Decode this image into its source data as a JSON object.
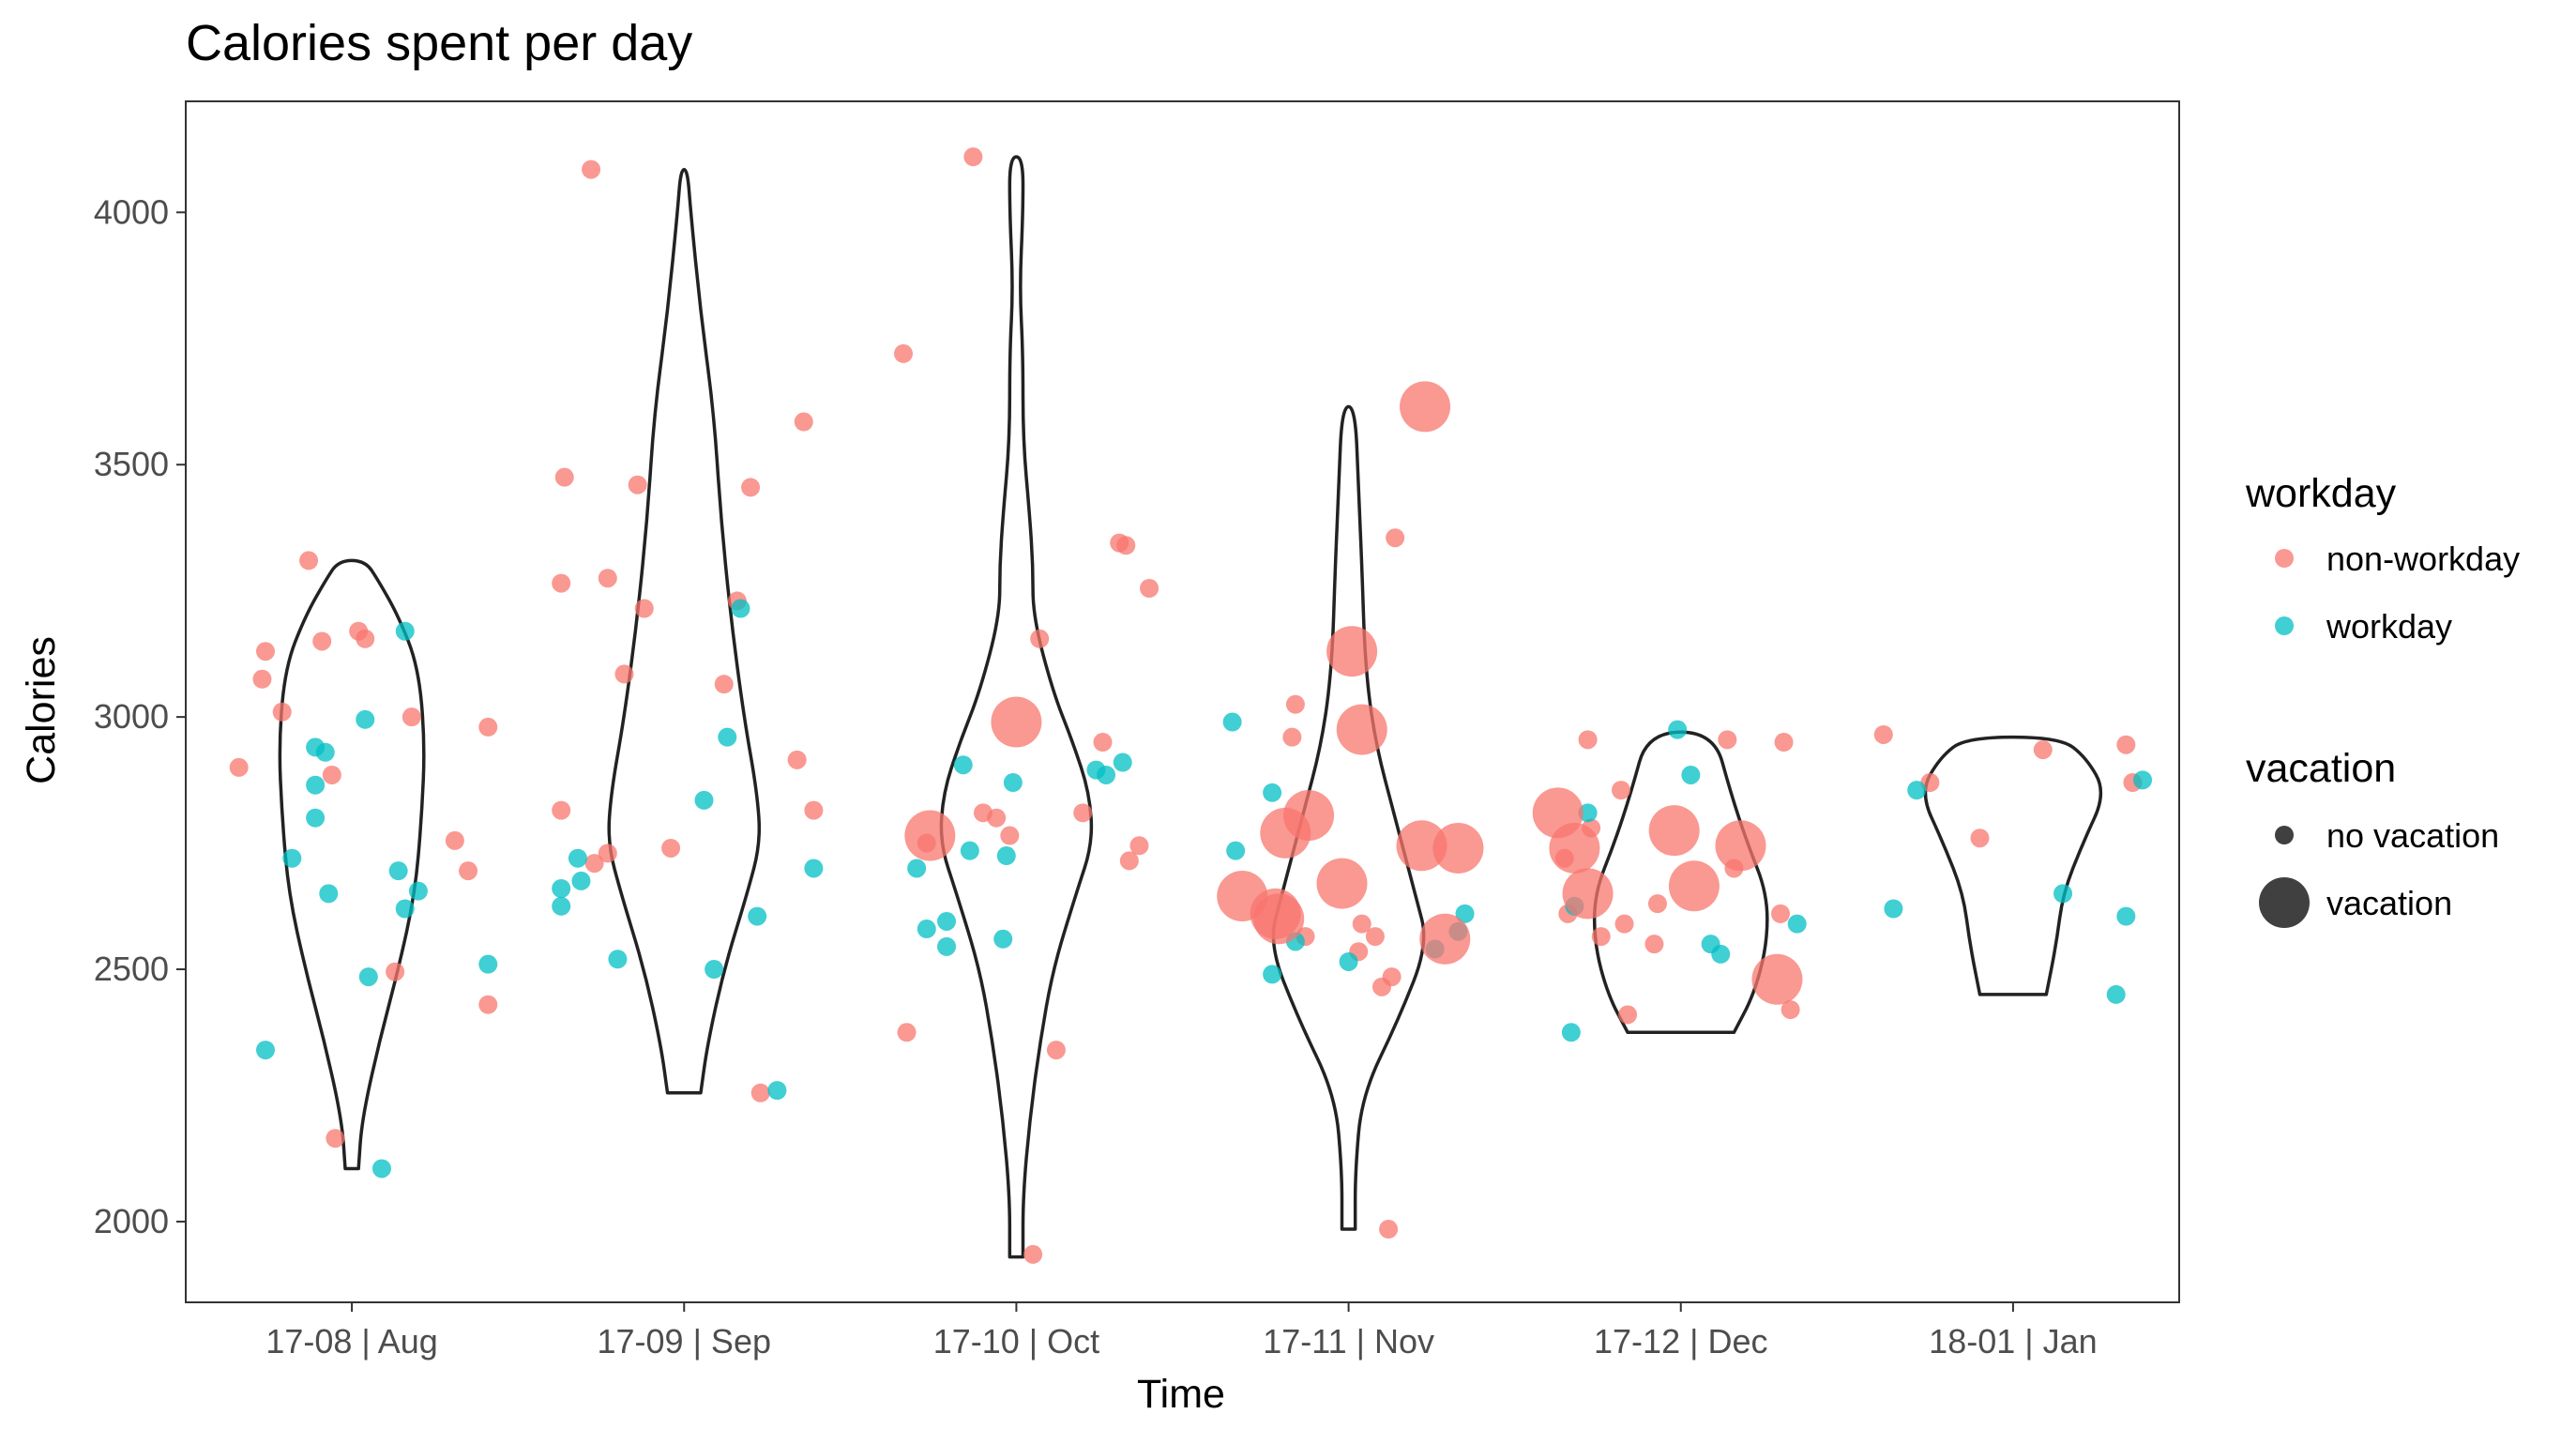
{
  "chart_data": {
    "type": "violin",
    "title": "Calories spent per day",
    "xlabel": "Time",
    "ylabel": "Calories",
    "ylim": [
      1840,
      4220
    ],
    "yticks": [
      2000,
      2500,
      3000,
      3500,
      4000
    ],
    "grid": false,
    "legend_position": "right",
    "categories": [
      "17-08 | Aug",
      "17-09 | Sep",
      "17-10 | Oct",
      "17-11 | Nov",
      "17-12 | Dec",
      "18-01 | Jan"
    ],
    "violins": [
      {
        "category": "17-08 | Aug",
        "profile": [
          [
            2105,
            0.02
          ],
          [
            2200,
            0.03
          ],
          [
            2350,
            0.08
          ],
          [
            2500,
            0.14
          ],
          [
            2650,
            0.19
          ],
          [
            2800,
            0.21
          ],
          [
            2950,
            0.22
          ],
          [
            3100,
            0.2
          ],
          [
            3200,
            0.14
          ],
          [
            3270,
            0.08
          ],
          [
            3310,
            0.04
          ]
        ]
      },
      {
        "category": "17-09 | Sep",
        "profile": [
          [
            2255,
            0.05
          ],
          [
            2350,
            0.07
          ],
          [
            2500,
            0.12
          ],
          [
            2650,
            0.19
          ],
          [
            2750,
            0.23
          ],
          [
            2850,
            0.22
          ],
          [
            3000,
            0.18
          ],
          [
            3200,
            0.14
          ],
          [
            3400,
            0.11
          ],
          [
            3600,
            0.09
          ],
          [
            3800,
            0.05
          ],
          [
            4000,
            0.02
          ],
          [
            4085,
            0.01
          ]
        ]
      },
      {
        "category": "17-10 | Oct",
        "profile": [
          [
            1930,
            0.02
          ],
          [
            2050,
            0.02
          ],
          [
            2200,
            0.04
          ],
          [
            2350,
            0.07
          ],
          [
            2500,
            0.11
          ],
          [
            2650,
            0.18
          ],
          [
            2750,
            0.23
          ],
          [
            2850,
            0.22
          ],
          [
            2950,
            0.17
          ],
          [
            3050,
            0.11
          ],
          [
            3200,
            0.05
          ],
          [
            3300,
            0.05
          ],
          [
            3400,
            0.04
          ],
          [
            3550,
            0.02
          ],
          [
            3720,
            0.02
          ],
          [
            3850,
            0.01
          ],
          [
            4000,
            0.02
          ],
          [
            4110,
            0.02
          ]
        ]
      },
      {
        "category": "17-11 | Nov",
        "profile": [
          [
            1985,
            0.02
          ],
          [
            2100,
            0.02
          ],
          [
            2250,
            0.04
          ],
          [
            2400,
            0.15
          ],
          [
            2550,
            0.24
          ],
          [
            2650,
            0.2
          ],
          [
            2800,
            0.14
          ],
          [
            2950,
            0.08
          ],
          [
            3100,
            0.05
          ],
          [
            3300,
            0.04
          ],
          [
            3450,
            0.03
          ],
          [
            3615,
            0.02
          ]
        ]
      },
      {
        "category": "17-12 | Dec",
        "profile": [
          [
            2375,
            0.16
          ],
          [
            2450,
            0.22
          ],
          [
            2550,
            0.26
          ],
          [
            2650,
            0.26
          ],
          [
            2750,
            0.2
          ],
          [
            2850,
            0.15
          ],
          [
            2970,
            0.1
          ]
        ]
      },
      {
        "category": "18-01 | Jan",
        "profile": [
          [
            2450,
            0.1
          ],
          [
            2550,
            0.13
          ],
          [
            2650,
            0.15
          ],
          [
            2750,
            0.21
          ],
          [
            2850,
            0.28
          ],
          [
            2920,
            0.22
          ],
          [
            2960,
            0.14
          ]
        ]
      }
    ],
    "series": [
      {
        "name": "non-workday",
        "color": "#F8766D",
        "points": [
          {
            "x": 0.66,
            "y": 2900
          },
          {
            "x": 0.74,
            "y": 3130
          },
          {
            "x": 0.73,
            "y": 3075
          },
          {
            "x": 0.79,
            "y": 3010
          },
          {
            "x": 0.87,
            "y": 3310
          },
          {
            "x": 0.91,
            "y": 3150
          },
          {
            "x": 0.94,
            "y": 2885
          },
          {
            "x": 0.95,
            "y": 2165
          },
          {
            "x": 1.02,
            "y": 3170
          },
          {
            "x": 1.04,
            "y": 3155
          },
          {
            "x": 1.13,
            "y": 2495
          },
          {
            "x": 1.18,
            "y": 3000
          },
          {
            "x": 1.31,
            "y": 2755
          },
          {
            "x": 1.35,
            "y": 2695
          },
          {
            "x": 1.41,
            "y": 2980
          },
          {
            "x": 1.41,
            "y": 2430
          },
          {
            "x": 1.63,
            "y": 2815
          },
          {
            "x": 1.63,
            "y": 3265
          },
          {
            "x": 1.64,
            "y": 3475
          },
          {
            "x": 1.72,
            "y": 4085
          },
          {
            "x": 1.77,
            "y": 3275
          },
          {
            "x": 1.77,
            "y": 2730
          },
          {
            "x": 1.73,
            "y": 2710
          },
          {
            "x": 1.82,
            "y": 3085
          },
          {
            "x": 1.86,
            "y": 3460
          },
          {
            "x": 1.88,
            "y": 3215
          },
          {
            "x": 1.96,
            "y": 2740
          },
          {
            "x": 2.12,
            "y": 3065
          },
          {
            "x": 2.16,
            "y": 3230
          },
          {
            "x": 2.2,
            "y": 3455
          },
          {
            "x": 2.23,
            "y": 2255
          },
          {
            "x": 2.34,
            "y": 2915
          },
          {
            "x": 2.36,
            "y": 3585
          },
          {
            "x": 2.39,
            "y": 2815
          },
          {
            "x": 2.66,
            "y": 3720
          },
          {
            "x": 2.67,
            "y": 2375
          },
          {
            "x": 2.73,
            "y": 2750
          },
          {
            "x": 2.87,
            "y": 4110
          },
          {
            "x": 2.9,
            "y": 2810
          },
          {
            "x": 2.94,
            "y": 2800
          },
          {
            "x": 2.98,
            "y": 2765
          },
          {
            "x": 3.05,
            "y": 1935
          },
          {
            "x": 3.07,
            "y": 3155
          },
          {
            "x": 3.12,
            "y": 2340
          },
          {
            "x": 3.2,
            "y": 2810
          },
          {
            "x": 3.26,
            "y": 2950
          },
          {
            "x": 3.31,
            "y": 3345
          },
          {
            "x": 3.33,
            "y": 3340
          },
          {
            "x": 3.34,
            "y": 2715
          },
          {
            "x": 3.37,
            "y": 2745
          },
          {
            "x": 3.4,
            "y": 3255
          },
          {
            "x": 3.83,
            "y": 2960
          },
          {
            "x": 3.84,
            "y": 3025
          },
          {
            "x": 3.87,
            "y": 2565
          },
          {
            "x": 4.03,
            "y": 2535
          },
          {
            "x": 4.04,
            "y": 2590
          },
          {
            "x": 4.08,
            "y": 2565
          },
          {
            "x": 4.1,
            "y": 2465
          },
          {
            "x": 4.12,
            "y": 1985
          },
          {
            "x": 4.13,
            "y": 2485
          },
          {
            "x": 4.14,
            "y": 3355
          },
          {
            "x": 4.65,
            "y": 2720
          },
          {
            "x": 4.66,
            "y": 2610
          },
          {
            "x": 4.72,
            "y": 2955
          },
          {
            "x": 4.73,
            "y": 2780
          },
          {
            "x": 4.76,
            "y": 2565
          },
          {
            "x": 4.82,
            "y": 2855
          },
          {
            "x": 4.83,
            "y": 2590
          },
          {
            "x": 4.84,
            "y": 2410
          },
          {
            "x": 4.92,
            "y": 2550
          },
          {
            "x": 4.93,
            "y": 2630
          },
          {
            "x": 5.14,
            "y": 2955
          },
          {
            "x": 5.16,
            "y": 2700
          },
          {
            "x": 5.3,
            "y": 2610
          },
          {
            "x": 5.31,
            "y": 2950
          },
          {
            "x": 5.33,
            "y": 2420
          },
          {
            "x": 5.61,
            "y": 2965
          },
          {
            "x": 5.75,
            "y": 2870
          },
          {
            "x": 5.9,
            "y": 2760
          },
          {
            "x": 6.09,
            "y": 2935
          },
          {
            "x": 6.34,
            "y": 2945
          },
          {
            "x": 6.36,
            "y": 2870
          }
        ]
      },
      {
        "name": "workday",
        "color": "#00BFC4",
        "points": [
          {
            "x": 0.74,
            "y": 2340
          },
          {
            "x": 0.82,
            "y": 2720
          },
          {
            "x": 0.89,
            "y": 2940
          },
          {
            "x": 0.89,
            "y": 2865
          },
          {
            "x": 0.89,
            "y": 2800
          },
          {
            "x": 0.92,
            "y": 2930
          },
          {
            "x": 0.93,
            "y": 2650
          },
          {
            "x": 1.04,
            "y": 2995
          },
          {
            "x": 1.05,
            "y": 2485
          },
          {
            "x": 1.09,
            "y": 2105
          },
          {
            "x": 1.14,
            "y": 2695
          },
          {
            "x": 1.16,
            "y": 3170
          },
          {
            "x": 1.16,
            "y": 2620
          },
          {
            "x": 1.2,
            "y": 2655
          },
          {
            "x": 1.41,
            "y": 2510
          },
          {
            "x": 1.63,
            "y": 2625
          },
          {
            "x": 1.63,
            "y": 2660
          },
          {
            "x": 1.68,
            "y": 2720
          },
          {
            "x": 1.69,
            "y": 2675
          },
          {
            "x": 1.8,
            "y": 2520
          },
          {
            "x": 2.06,
            "y": 2835
          },
          {
            "x": 2.09,
            "y": 2500
          },
          {
            "x": 2.13,
            "y": 2960
          },
          {
            "x": 2.17,
            "y": 3215
          },
          {
            "x": 2.22,
            "y": 2605
          },
          {
            "x": 2.28,
            "y": 2260
          },
          {
            "x": 2.39,
            "y": 2700
          },
          {
            "x": 2.7,
            "y": 2700
          },
          {
            "x": 2.73,
            "y": 2580
          },
          {
            "x": 2.79,
            "y": 2595
          },
          {
            "x": 2.79,
            "y": 2545
          },
          {
            "x": 2.84,
            "y": 2905
          },
          {
            "x": 2.86,
            "y": 2735
          },
          {
            "x": 2.96,
            "y": 2560
          },
          {
            "x": 2.97,
            "y": 2725
          },
          {
            "x": 2.99,
            "y": 2870
          },
          {
            "x": 3.24,
            "y": 2895
          },
          {
            "x": 3.27,
            "y": 2885
          },
          {
            "x": 3.32,
            "y": 2910
          },
          {
            "x": 3.65,
            "y": 2990
          },
          {
            "x": 3.66,
            "y": 2735
          },
          {
            "x": 3.77,
            "y": 2850
          },
          {
            "x": 3.77,
            "y": 2490
          },
          {
            "x": 3.84,
            "y": 2555
          },
          {
            "x": 4.0,
            "y": 2515
          },
          {
            "x": 4.26,
            "y": 2540
          },
          {
            "x": 4.33,
            "y": 2575
          },
          {
            "x": 4.35,
            "y": 2610
          },
          {
            "x": 4.67,
            "y": 2375
          },
          {
            "x": 4.68,
            "y": 2625
          },
          {
            "x": 4.72,
            "y": 2810
          },
          {
            "x": 4.99,
            "y": 2975
          },
          {
            "x": 5.03,
            "y": 2885
          },
          {
            "x": 5.09,
            "y": 2550
          },
          {
            "x": 5.12,
            "y": 2530
          },
          {
            "x": 5.35,
            "y": 2590
          },
          {
            "x": 5.64,
            "y": 2620
          },
          {
            "x": 5.71,
            "y": 2855
          },
          {
            "x": 6.15,
            "y": 2650
          },
          {
            "x": 6.31,
            "y": 2450
          },
          {
            "x": 6.34,
            "y": 2605
          },
          {
            "x": 6.39,
            "y": 2875
          }
        ]
      },
      {
        "name": "non-workday",
        "vacation": true,
        "color": "#F8766D",
        "points": [
          {
            "x": 2.74,
            "y": 2765
          },
          {
            "x": 3.0,
            "y": 2990
          },
          {
            "x": 3.68,
            "y": 2645
          },
          {
            "x": 3.78,
            "y": 2610
          },
          {
            "x": 3.79,
            "y": 2600
          },
          {
            "x": 3.81,
            "y": 2770
          },
          {
            "x": 3.88,
            "y": 2805
          },
          {
            "x": 3.98,
            "y": 2670
          },
          {
            "x": 4.01,
            "y": 3130
          },
          {
            "x": 4.04,
            "y": 2975
          },
          {
            "x": 4.23,
            "y": 3615
          },
          {
            "x": 4.22,
            "y": 2745
          },
          {
            "x": 4.33,
            "y": 2740
          },
          {
            "x": 4.29,
            "y": 2560
          },
          {
            "x": 4.63,
            "y": 2810
          },
          {
            "x": 4.68,
            "y": 2740
          },
          {
            "x": 4.72,
            "y": 2650
          },
          {
            "x": 4.98,
            "y": 2775
          },
          {
            "x": 5.04,
            "y": 2665
          },
          {
            "x": 5.18,
            "y": 2745
          },
          {
            "x": 5.29,
            "y": 2480
          }
        ]
      }
    ],
    "legends": [
      {
        "title": "workday",
        "items": [
          {
            "label": "non-workday",
            "color": "#F8766D"
          },
          {
            "label": "workday",
            "color": "#00BFC4"
          }
        ]
      },
      {
        "title": "vacation",
        "items": [
          {
            "label": "no vacation",
            "size": "small"
          },
          {
            "label": "vacation",
            "size": "large"
          }
        ]
      }
    ]
  }
}
